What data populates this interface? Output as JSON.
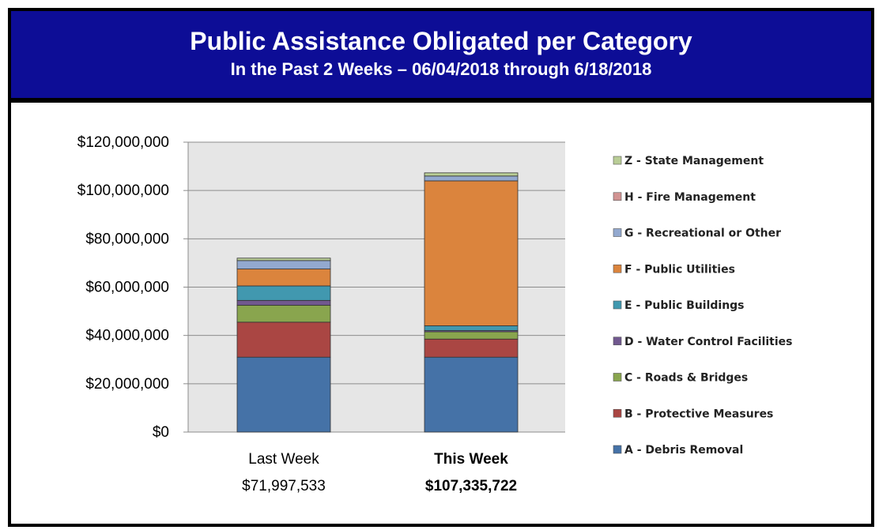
{
  "header": {
    "title": "Public Assistance Obligated per Category",
    "subtitle": "In the Past 2 Weeks – 06/04/2018 through 6/18/2018"
  },
  "chart_data": {
    "type": "bar",
    "stacked": true,
    "title": "Public Assistance Obligated per Category",
    "subtitle": "In the Past 2 Weeks – 06/04/2018 through 6/18/2018",
    "categories": [
      "Last Week",
      "This Week"
    ],
    "category_totals": [
      "$71,997,533",
      "$107,335,722"
    ],
    "ylim": [
      0,
      120000000
    ],
    "yticks": [
      0,
      20000000,
      40000000,
      60000000,
      80000000,
      100000000,
      120000000
    ],
    "ytick_labels": [
      "$0",
      "$20,000,000",
      "$40,000,000",
      "$60,000,000",
      "$80,000,000",
      "$100,000,000",
      "$120,000,000"
    ],
    "grid": true,
    "legend_position": "right",
    "series": [
      {
        "name": "A - Debris Removal",
        "color": "#4572a7",
        "values": [
          31000000,
          31000000
        ]
      },
      {
        "name": "B - Protective Measures",
        "color": "#aa4643",
        "values": [
          14500000,
          7500000
        ]
      },
      {
        "name": "C - Roads & Bridges",
        "color": "#89a54e",
        "values": [
          7000000,
          3000000
        ]
      },
      {
        "name": "D - Water Control Facilities",
        "color": "#71588f",
        "values": [
          2000000,
          500000
        ]
      },
      {
        "name": "E - Public Buildings",
        "color": "#4198af",
        "values": [
          6000000,
          2000000
        ]
      },
      {
        "name": "F - Public Utilities",
        "color": "#db843d",
        "values": [
          7000000,
          60000000
        ]
      },
      {
        "name": "G - Recreational or Other",
        "color": "#93a9cf",
        "values": [
          3500000,
          2000000
        ]
      },
      {
        "name": "H - Fire Management",
        "color": "#d19392",
        "values": [
          0,
          0
        ]
      },
      {
        "name": "Z - State Management",
        "color": "#b9cd96",
        "values": [
          1000000,
          1300000
        ]
      }
    ]
  }
}
